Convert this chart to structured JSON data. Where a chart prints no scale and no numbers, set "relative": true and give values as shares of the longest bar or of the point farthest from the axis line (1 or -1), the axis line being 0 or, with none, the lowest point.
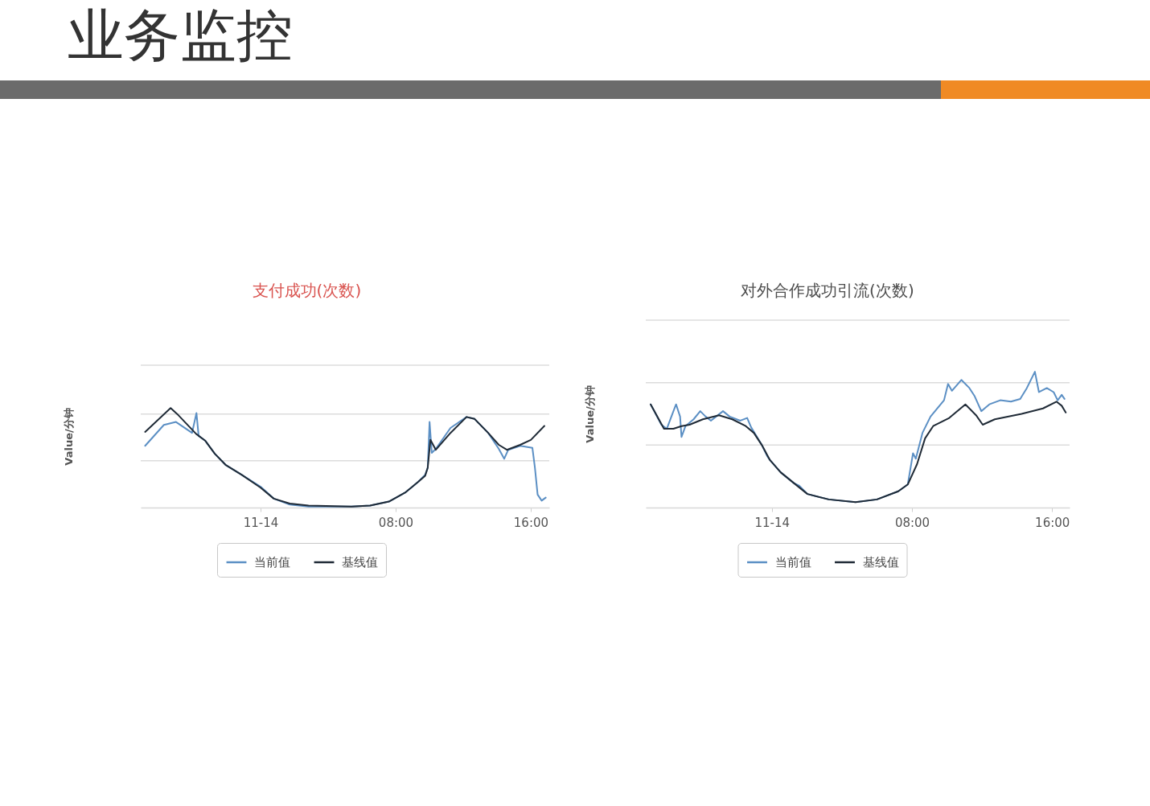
{
  "chart_data": [
    {
      "type": "other",
      "title": "业务监控"
    },
    {
      "type": "line",
      "title": "支付成功(次数)",
      "ylabel": "Value/分钟",
      "relative": true,
      "xlim": [
        -7.1,
        17.1
      ],
      "xticks": [
        {
          "value": 0,
          "label": "11-14"
        },
        {
          "value": 8,
          "label": "08:00"
        },
        {
          "value": 16,
          "label": "16:00"
        }
      ],
      "legend": "bottom",
      "ref_lines": [
        {
          "axis": "y",
          "value": 0.47,
          "color": "#dcdcdc"
        },
        {
          "axis": "y",
          "value": 0.94,
          "color": "#dcdcdc"
        },
        {
          "axis": "y",
          "value": 1.43,
          "color": "#dcdcdc"
        }
      ],
      "series": [
        {
          "name": "当前值",
          "color": "#5b8fc4",
          "x": [
            -6.84,
            -5.73,
            -5.01,
            -4.06,
            -3.8,
            -3.67,
            -3.27,
            -2.71,
            -2.08,
            -1.13,
            0.0,
            0.78,
            1.73,
            2.84,
            5.38,
            6.49,
            7.6,
            8.56,
            9.35,
            9.75,
            9.9,
            10.01,
            10.14,
            10.38,
            11.25,
            12.2,
            12.68,
            13.48,
            14.11,
            14.43,
            14.67,
            15.38,
            16.1,
            16.25,
            16.41,
            16.65,
            16.89
          ],
          "values": [
            0.62,
            0.83,
            0.86,
            0.75,
            0.95,
            0.72,
            0.67,
            0.54,
            0.43,
            0.33,
            0.21,
            0.09,
            0.03,
            0.01,
            0.01,
            0.02,
            0.06,
            0.15,
            0.26,
            0.33,
            0.4,
            0.86,
            0.55,
            0.59,
            0.8,
            0.91,
            0.89,
            0.75,
            0.59,
            0.49,
            0.58,
            0.62,
            0.6,
            0.4,
            0.13,
            0.07,
            0.1
          ]
        },
        {
          "name": "基线值",
          "color": "#1f2a36",
          "x": [
            -6.84,
            -5.33,
            -4.94,
            -3.82,
            -3.27,
            -2.71,
            -2.08,
            -1.13,
            0.0,
            0.78,
            1.73,
            2.84,
            5.38,
            6.49,
            7.6,
            8.56,
            9.35,
            9.75,
            9.9,
            10.06,
            10.38,
            11.25,
            12.2,
            12.68,
            13.48,
            14.11,
            14.59,
            15.38,
            16.01,
            16.81
          ],
          "values": [
            0.76,
            1.0,
            0.94,
            0.74,
            0.67,
            0.54,
            0.43,
            0.33,
            0.2,
            0.09,
            0.04,
            0.02,
            0.01,
            0.02,
            0.06,
            0.15,
            0.26,
            0.32,
            0.4,
            0.68,
            0.58,
            0.75,
            0.91,
            0.89,
            0.75,
            0.63,
            0.58,
            0.63,
            0.68,
            0.82
          ]
        }
      ]
    },
    {
      "type": "line",
      "title": "对外合作成功引流(次数)",
      "ylabel": "Value/分钟",
      "relative": true,
      "xlim": [
        -7.2,
        17.0
      ],
      "xticks": [
        {
          "value": 0,
          "label": "11-14"
        },
        {
          "value": 8,
          "label": "08:00"
        },
        {
          "value": 16,
          "label": "16:00"
        }
      ],
      "legend": "bottom",
      "ref_lines": [
        {
          "axis": "y",
          "value": 0.46,
          "color": "#dcdcdc"
        },
        {
          "axis": "y",
          "value": 0.92,
          "color": "#dcdcdc"
        },
        {
          "axis": "y",
          "value": 1.38,
          "color": "#dcdcdc"
        }
      ],
      "series": [
        {
          "name": "当前值",
          "color": "#5b8fc4",
          "x": [
            -6.92,
            -6.31,
            -6.0,
            -5.62,
            -5.47,
            -5.24,
            -5.16,
            -4.93,
            -4.47,
            -4.09,
            -3.78,
            -3.48,
            -2.79,
            -2.41,
            -1.8,
            -1.41,
            -1.18,
            -0.57,
            -0.27,
            -0.11,
            0.5,
            1.26,
            1.57,
            2.03,
            3.25,
            4.78,
            6.0,
            7.22,
            7.76,
            8.06,
            8.22,
            8.6,
            9.06,
            9.83,
            10.06,
            10.28,
            10.82,
            11.28,
            11.58,
            11.96,
            12.42,
            13.04,
            13.65,
            14.18,
            14.56,
            15.02,
            15.25,
            15.7,
            16.09,
            16.32,
            16.55,
            16.71
          ],
          "values": [
            0.76,
            0.61,
            0.58,
            0.71,
            0.76,
            0.67,
            0.52,
            0.6,
            0.65,
            0.71,
            0.67,
            0.64,
            0.71,
            0.67,
            0.64,
            0.66,
            0.59,
            0.46,
            0.38,
            0.35,
            0.26,
            0.18,
            0.16,
            0.1,
            0.06,
            0.04,
            0.06,
            0.12,
            0.17,
            0.4,
            0.36,
            0.55,
            0.67,
            0.79,
            0.91,
            0.86,
            0.94,
            0.88,
            0.82,
            0.71,
            0.76,
            0.79,
            0.78,
            0.8,
            0.88,
            1.0,
            0.85,
            0.88,
            0.85,
            0.79,
            0.83,
            0.8
          ]
        },
        {
          "name": "基线值",
          "color": "#1f2a36",
          "x": [
            -6.92,
            -6.16,
            -5.62,
            -5.16,
            -4.7,
            -3.94,
            -3.02,
            -2.26,
            -1.49,
            -1.03,
            -0.57,
            -0.11,
            0.5,
            1.26,
            2.03,
            3.25,
            4.78,
            6.0,
            7.22,
            7.76,
            8.29,
            8.75,
            9.21,
            10.13,
            11.05,
            11.66,
            12.04,
            12.73,
            14.26,
            15.48,
            16.25,
            16.55,
            16.78
          ],
          "values": [
            0.76,
            0.58,
            0.58,
            0.6,
            0.61,
            0.65,
            0.68,
            0.65,
            0.6,
            0.55,
            0.46,
            0.35,
            0.26,
            0.18,
            0.1,
            0.06,
            0.04,
            0.06,
            0.12,
            0.17,
            0.32,
            0.51,
            0.6,
            0.66,
            0.76,
            0.68,
            0.61,
            0.65,
            0.69,
            0.73,
            0.78,
            0.75,
            0.7
          ]
        }
      ]
    }
  ]
}
